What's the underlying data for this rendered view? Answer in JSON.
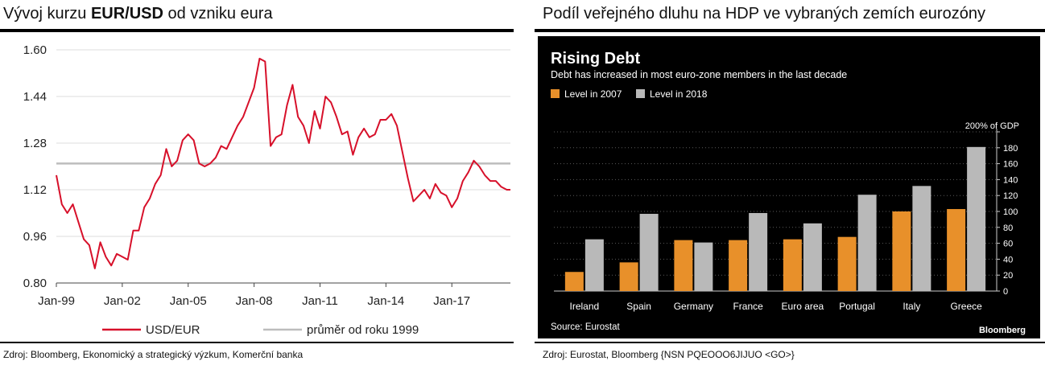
{
  "left": {
    "title_pre": "Vývoj kurzu ",
    "title_bold": "EUR/USD",
    "title_post": " od vzniku eura",
    "source": "Zdroj: Bloomberg, Ekonomický a strategický výzkum, Komerční banka"
  },
  "right": {
    "title": "Podíl veřejného dluhu na HDP ve vybraných zemích eurozóny",
    "source": "Zdroj: Eurostat, Bloomberg {NSN PQEOOO6JIJUO <GO>}"
  },
  "colors": {
    "usd_line": "#d7102a",
    "average_line": "#bdbdbd",
    "bar_2007": "#e8902a",
    "bar_2018": "#b9b9b9"
  },
  "chart_data": [
    {
      "type": "line",
      "x_tick_labels": [
        "Jan-99",
        "Jan-02",
        "Jan-05",
        "Jan-08",
        "Jan-11",
        "Jan-14",
        "Jan-17"
      ],
      "y_tick_labels": [
        "1.60",
        "1.44",
        "1.28",
        "1.12",
        "0.96",
        "0.80"
      ],
      "ylim": [
        0.8,
        1.6
      ],
      "xlim": [
        "1999-01",
        "2019-09"
      ],
      "grid": true,
      "legend_position": "bottom",
      "series": [
        {
          "name": "USD/EUR",
          "x": [
            "1999-01",
            "1999-04",
            "1999-07",
            "1999-10",
            "2000-01",
            "2000-04",
            "2000-07",
            "2000-10",
            "2001-01",
            "2001-04",
            "2001-07",
            "2001-10",
            "2002-01",
            "2002-04",
            "2002-07",
            "2002-10",
            "2003-01",
            "2003-04",
            "2003-07",
            "2003-10",
            "2004-01",
            "2004-04",
            "2004-07",
            "2004-10",
            "2005-01",
            "2005-04",
            "2005-07",
            "2005-10",
            "2006-01",
            "2006-04",
            "2006-07",
            "2006-10",
            "2007-01",
            "2007-04",
            "2007-07",
            "2007-10",
            "2008-01",
            "2008-04",
            "2008-07",
            "2008-10",
            "2009-01",
            "2009-04",
            "2009-07",
            "2009-10",
            "2010-01",
            "2010-04",
            "2010-07",
            "2010-10",
            "2011-01",
            "2011-04",
            "2011-07",
            "2011-10",
            "2012-01",
            "2012-04",
            "2012-07",
            "2012-10",
            "2013-01",
            "2013-04",
            "2013-07",
            "2013-10",
            "2014-01",
            "2014-04",
            "2014-07",
            "2014-10",
            "2015-01",
            "2015-04",
            "2015-07",
            "2015-10",
            "2016-01",
            "2016-04",
            "2016-07",
            "2016-10",
            "2017-01",
            "2017-04",
            "2017-07",
            "2017-10",
            "2018-01",
            "2018-04",
            "2018-07",
            "2018-10",
            "2019-01",
            "2019-04",
            "2019-07",
            "2019-09"
          ],
          "values": [
            1.17,
            1.07,
            1.04,
            1.07,
            1.01,
            0.95,
            0.93,
            0.85,
            0.94,
            0.89,
            0.86,
            0.9,
            0.89,
            0.88,
            0.98,
            0.98,
            1.06,
            1.09,
            1.14,
            1.17,
            1.26,
            1.2,
            1.22,
            1.29,
            1.31,
            1.29,
            1.21,
            1.2,
            1.21,
            1.23,
            1.27,
            1.26,
            1.3,
            1.34,
            1.37,
            1.42,
            1.47,
            1.57,
            1.56,
            1.27,
            1.3,
            1.31,
            1.41,
            1.48,
            1.37,
            1.34,
            1.28,
            1.39,
            1.33,
            1.44,
            1.42,
            1.37,
            1.31,
            1.32,
            1.24,
            1.3,
            1.33,
            1.3,
            1.31,
            1.36,
            1.36,
            1.38,
            1.34,
            1.25,
            1.16,
            1.08,
            1.1,
            1.12,
            1.09,
            1.14,
            1.11,
            1.1,
            1.06,
            1.09,
            1.15,
            1.18,
            1.22,
            1.2,
            1.17,
            1.15,
            1.15,
            1.13,
            1.12,
            1.12
          ]
        },
        {
          "name": "průměr od roku 1999",
          "x": [
            "1999-01",
            "2019-09"
          ],
          "values": [
            1.21,
            1.21
          ]
        }
      ]
    },
    {
      "type": "bar",
      "title": "Rising Debt",
      "subtitle": "Debt has increased in most euro-zone members in the last decade",
      "categories": [
        "Ireland",
        "Spain",
        "Germany",
        "France",
        "Euro area",
        "Portugal",
        "Italy",
        "Greece"
      ],
      "series": [
        {
          "name": "Level in 2007",
          "values": [
            24,
            36,
            64,
            64,
            65,
            68,
            100,
            103
          ]
        },
        {
          "name": "Level in 2018",
          "values": [
            65,
            97,
            61,
            98,
            85,
            121,
            132,
            181
          ]
        }
      ],
      "ylim": [
        0,
        200
      ],
      "y_tick_labels": [
        "200% of GDP",
        "180",
        "160",
        "140",
        "120",
        "100",
        "80",
        "60",
        "40",
        "20",
        "0"
      ],
      "y_axis_position": "right",
      "legend_position": "top-left",
      "source_note": "Source: Eurostat",
      "brand": "Bloomberg"
    }
  ]
}
